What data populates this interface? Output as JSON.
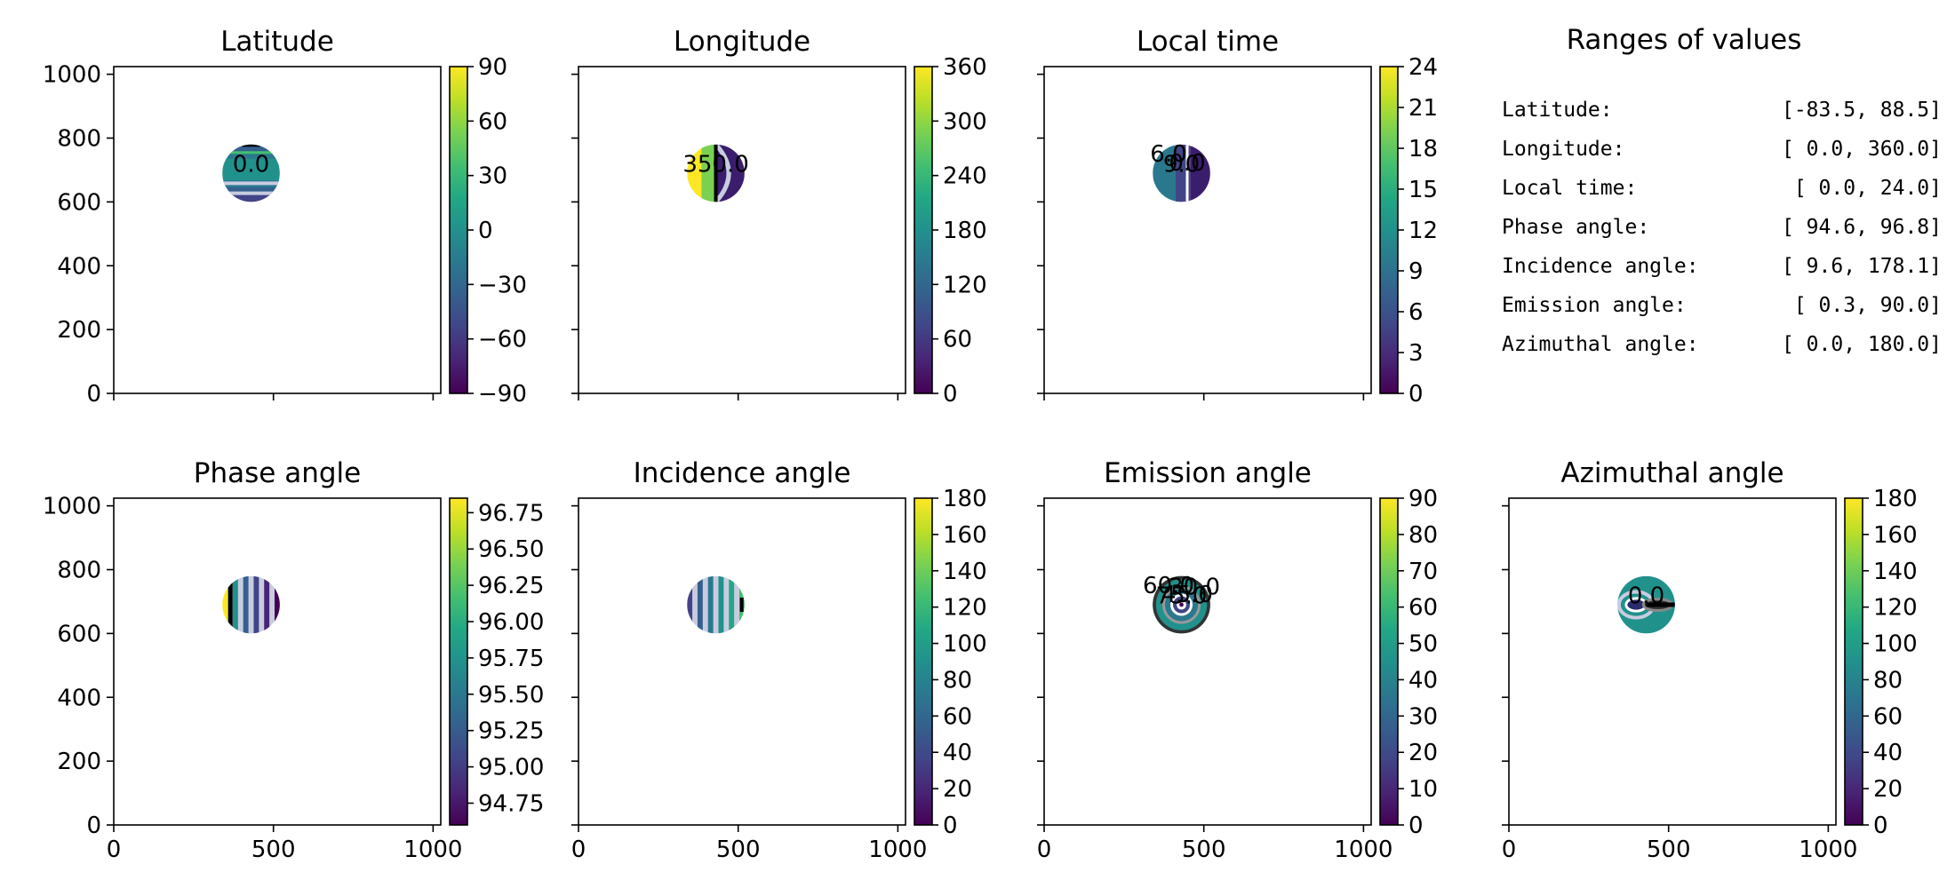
{
  "chart_data": [
    {
      "type": "heatmap",
      "title": "Latitude",
      "x_ticks": [
        "0",
        "500",
        "1000"
      ],
      "show_x_tick_labels": false,
      "y_ticks": [
        "0",
        "200",
        "400",
        "600",
        "800",
        "1000"
      ],
      "show_y_tick_labels": true,
      "xlim": [
        0,
        1024
      ],
      "ylim": [
        0,
        1024
      ],
      "disk": {
        "center": [
          430,
          690
        ],
        "radius": 90
      },
      "colorbar": {
        "min": -90,
        "max": 90,
        "ticks": [
          "90",
          "60",
          "30",
          "0",
          "−30",
          "−60",
          "−90"
        ],
        "tick_values": [
          90,
          60,
          30,
          0,
          -30,
          -60,
          -90
        ]
      },
      "contour_labels": [
        "0.0"
      ],
      "fill": "lat"
    },
    {
      "type": "heatmap",
      "title": "Longitude",
      "x_ticks": [
        "0",
        "500",
        "1000"
      ],
      "show_x_tick_labels": false,
      "y_ticks": [
        "0",
        "200",
        "400",
        "600",
        "800",
        "1000"
      ],
      "show_y_tick_labels": false,
      "xlim": [
        0,
        1024
      ],
      "ylim": [
        0,
        1024
      ],
      "disk": {
        "center": [
          430,
          690
        ],
        "radius": 90
      },
      "colorbar": {
        "min": 0,
        "max": 360,
        "ticks": [
          "360",
          "300",
          "240",
          "180",
          "120",
          "60",
          "0"
        ],
        "tick_values": [
          360,
          300,
          240,
          180,
          120,
          60,
          0
        ]
      },
      "contour_labels": [
        "350.0"
      ],
      "fill": "lon"
    },
    {
      "type": "heatmap",
      "title": "Local time",
      "x_ticks": [
        "0",
        "500",
        "1000"
      ],
      "show_x_tick_labels": false,
      "y_ticks": [
        "0",
        "200",
        "400",
        "600",
        "800",
        "1000"
      ],
      "show_y_tick_labels": false,
      "xlim": [
        0,
        1024
      ],
      "ylim": [
        0,
        1024
      ],
      "disk": {
        "center": [
          430,
          690
        ],
        "radius": 90
      },
      "colorbar": {
        "min": 0,
        "max": 24,
        "ticks": [
          "24",
          "21",
          "18",
          "15",
          "12",
          "9",
          "6",
          "3",
          "0"
        ],
        "tick_values": [
          24,
          21,
          18,
          15,
          12,
          9,
          6,
          3,
          0
        ]
      },
      "contour_labels": [
        "9.0",
        "6.0",
        "0.0"
      ],
      "fill": "lt"
    },
    {
      "type": "heatmap",
      "title": "Phase angle",
      "x_ticks": [
        "0",
        "500",
        "1000"
      ],
      "show_x_tick_labels": true,
      "y_ticks": [
        "0",
        "200",
        "400",
        "600",
        "800",
        "1000"
      ],
      "show_y_tick_labels": true,
      "xlim": [
        0,
        1024
      ],
      "ylim": [
        0,
        1024
      ],
      "disk": {
        "center": [
          430,
          690
        ],
        "radius": 90
      },
      "colorbar": {
        "min": 94.6,
        "max": 96.85,
        "ticks": [
          "96.75",
          "96.50",
          "96.25",
          "96.00",
          "95.75",
          "95.50",
          "95.25",
          "95.00",
          "94.75"
        ],
        "tick_values": [
          96.75,
          96.5,
          96.25,
          96.0,
          95.75,
          95.5,
          95.25,
          95.0,
          94.75
        ]
      },
      "contour_labels": [],
      "fill": "phase"
    },
    {
      "type": "heatmap",
      "title": "Incidence angle",
      "x_ticks": [
        "0",
        "500",
        "1000"
      ],
      "show_x_tick_labels": true,
      "y_ticks": [
        "0",
        "200",
        "400",
        "600",
        "800",
        "1000"
      ],
      "show_y_tick_labels": false,
      "xlim": [
        0,
        1024
      ],
      "ylim": [
        0,
        1024
      ],
      "disk": {
        "center": [
          430,
          690
        ],
        "radius": 90
      },
      "colorbar": {
        "min": 0,
        "max": 180,
        "ticks": [
          "180",
          "160",
          "140",
          "120",
          "100",
          "80",
          "60",
          "40",
          "20",
          "0"
        ],
        "tick_values": [
          180,
          160,
          140,
          120,
          100,
          80,
          60,
          40,
          20,
          0
        ]
      },
      "contour_labels": [],
      "fill": "inc"
    },
    {
      "type": "heatmap",
      "title": "Emission angle",
      "x_ticks": [
        "0",
        "500",
        "1000"
      ],
      "show_x_tick_labels": true,
      "y_ticks": [
        "0",
        "200",
        "400",
        "600",
        "800",
        "1000"
      ],
      "show_y_tick_labels": false,
      "xlim": [
        0,
        1024
      ],
      "ylim": [
        0,
        1024
      ],
      "disk": {
        "center": [
          430,
          690
        ],
        "radius": 90
      },
      "colorbar": {
        "min": 0,
        "max": 90,
        "ticks": [
          "90",
          "80",
          "70",
          "60",
          "50",
          "40",
          "30",
          "20",
          "10",
          "0"
        ],
        "tick_values": [
          90,
          80,
          70,
          60,
          50,
          40,
          30,
          20,
          10,
          0
        ]
      },
      "contour_labels": [
        "75.0",
        "60.0",
        "45.0",
        "30.0"
      ],
      "fill": "emi"
    },
    {
      "type": "heatmap",
      "title": "Azimuthal angle",
      "x_ticks": [
        "0",
        "500",
        "1000"
      ],
      "show_x_tick_labels": true,
      "y_ticks": [
        "0",
        "200",
        "400",
        "600",
        "800",
        "1000"
      ],
      "show_y_tick_labels": false,
      "xlim": [
        0,
        1024
      ],
      "ylim": [
        0,
        1024
      ],
      "disk": {
        "center": [
          430,
          690
        ],
        "radius": 90
      },
      "colorbar": {
        "min": 0,
        "max": 180,
        "ticks": [
          "180",
          "160",
          "140",
          "120",
          "100",
          "80",
          "60",
          "40",
          "20",
          "0"
        ],
        "tick_values": [
          180,
          160,
          140,
          120,
          100,
          80,
          60,
          40,
          20,
          0
        ]
      },
      "contour_labels": [
        "0.0"
      ],
      "fill": "azi"
    }
  ],
  "ranges_panel": {
    "title": "Ranges of values",
    "rows": [
      {
        "name": "Latitude:",
        "range": "[-83.5,  88.5]"
      },
      {
        "name": "Longitude:",
        "range": "[  0.0, 360.0]"
      },
      {
        "name": "Local time:",
        "range": "[  0.0,  24.0]"
      },
      {
        "name": "Phase angle:",
        "range": "[ 94.6,  96.8]"
      },
      {
        "name": "Incidence angle:",
        "range": "[  9.6, 178.1]"
      },
      {
        "name": "Emission angle:",
        "range": "[  0.3,  90.0]"
      },
      {
        "name": "Azimuthal angle:",
        "range": "[  0.0, 180.0]"
      }
    ]
  },
  "colormap": "viridis"
}
